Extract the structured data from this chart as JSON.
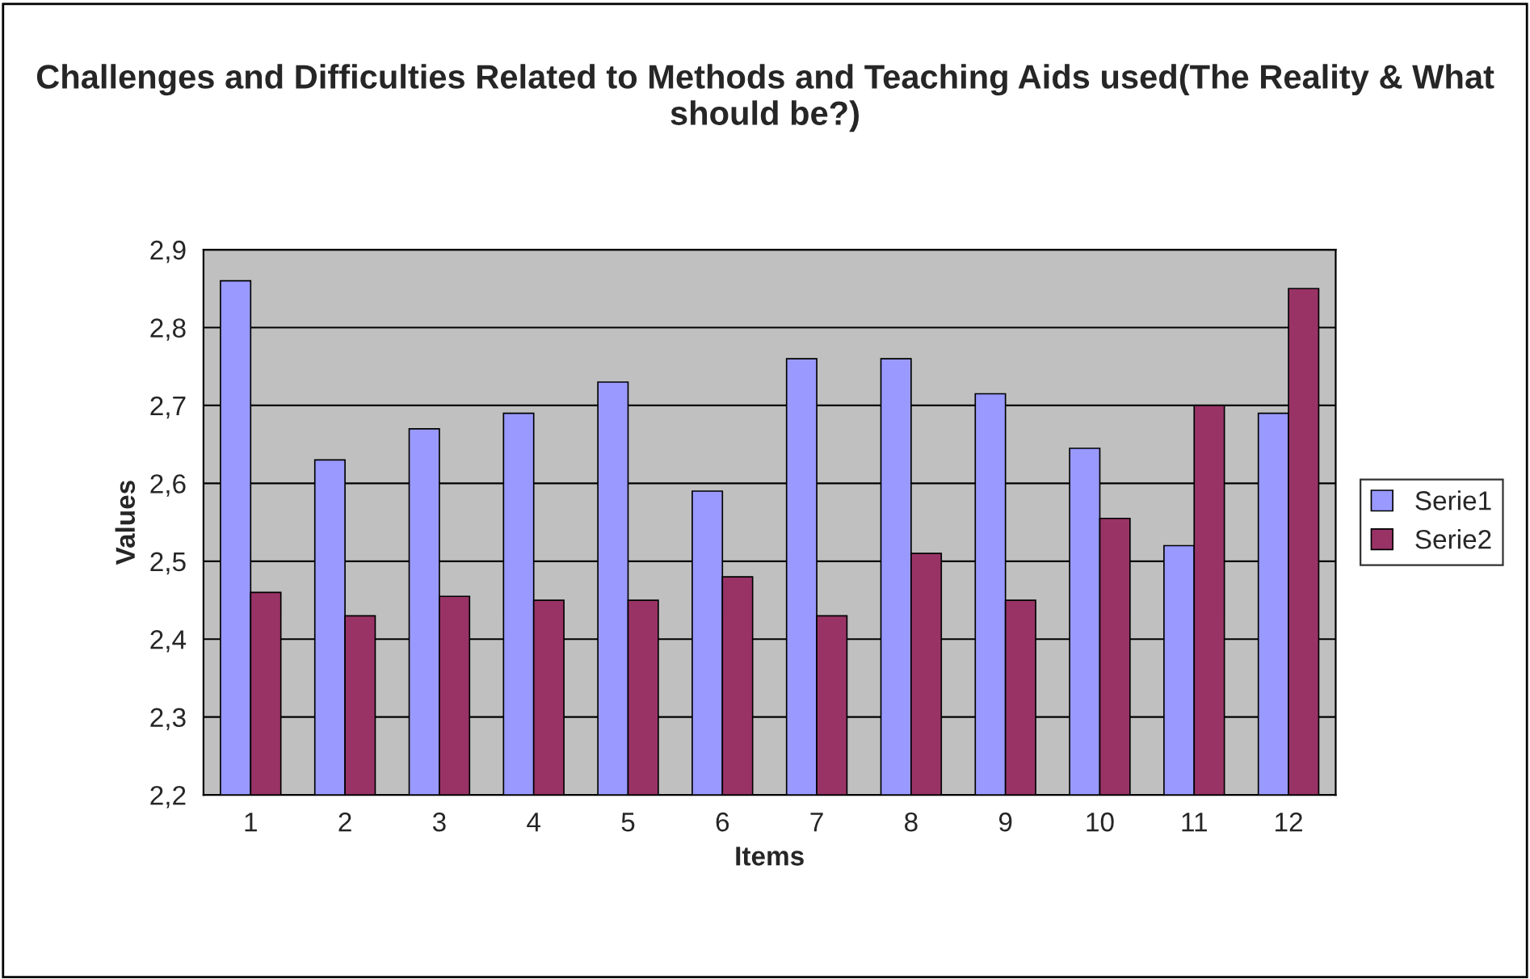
{
  "chart_data": {
    "type": "bar",
    "title": "Challenges and Difficulties Related to Methods and Teaching Aids used(The Reality & What should be?)",
    "xlabel": "Items",
    "ylabel": "Values",
    "categories": [
      "1",
      "2",
      "3",
      "4",
      "5",
      "6",
      "7",
      "8",
      "9",
      "10",
      "11",
      "12"
    ],
    "series": [
      {
        "name": "Serie1",
        "color": "#9999ff",
        "values": [
          2.86,
          2.63,
          2.67,
          2.69,
          2.73,
          2.59,
          2.76,
          2.76,
          2.715,
          2.645,
          2.52,
          2.69
        ]
      },
      {
        "name": "Serie2",
        "color": "#993366",
        "values": [
          2.46,
          2.43,
          2.455,
          2.45,
          2.45,
          2.48,
          2.43,
          2.51,
          2.45,
          2.555,
          2.7,
          2.85
        ]
      }
    ],
    "ylim": [
      2.2,
      2.9
    ],
    "yticks": [
      {
        "value": 2.2,
        "label": "2,2"
      },
      {
        "value": 2.3,
        "label": "2,3"
      },
      {
        "value": 2.4,
        "label": "2,4"
      },
      {
        "value": 2.5,
        "label": "2,5"
      },
      {
        "value": 2.6,
        "label": "2,6"
      },
      {
        "value": 2.7,
        "label": "2,7"
      },
      {
        "value": 2.8,
        "label": "2,8"
      },
      {
        "value": 2.9,
        "label": "2,9"
      }
    ],
    "grid": "y",
    "legend": "right"
  }
}
